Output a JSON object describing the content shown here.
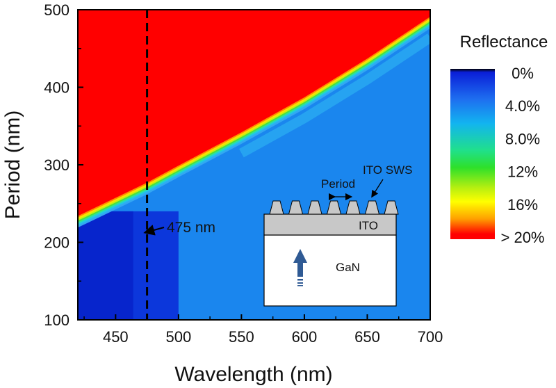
{
  "chart_data": {
    "type": "heatmap",
    "title": "",
    "xlabel": "Wavelength (nm)",
    "ylabel": "Period (nm)",
    "xlim": [
      420,
      700
    ],
    "ylim": [
      100,
      500
    ],
    "x_ticks": [
      450,
      500,
      550,
      600,
      650,
      700
    ],
    "y_ticks": [
      100,
      200,
      300,
      400,
      500
    ],
    "x_tick_labels": [
      "450",
      "500",
      "550",
      "600",
      "650",
      "700"
    ],
    "y_tick_labels": [
      "100",
      "200",
      "300",
      "400",
      "500"
    ],
    "colorbar": {
      "title": "Reflectance",
      "labels": [
        "0%",
        "4.0%",
        "8.0%",
        "12%",
        "16%",
        "> 20%"
      ],
      "values": [
        0,
        4,
        8,
        12,
        16,
        20
      ],
      "unit": "%",
      "colors": [
        "#000000",
        "#0a1fd8",
        "#1e6ff0",
        "#12b4f0",
        "#20e08a",
        "#2ee02a",
        "#b8ef10",
        "#ffff00",
        "#ffa000",
        "#ff0000"
      ]
    },
    "diffraction_boundary": {
      "x": [
        420,
        475,
        500,
        550,
        600,
        650,
        700
      ],
      "y": [
        225,
        268,
        290,
        333,
        378,
        428,
        482
      ]
    },
    "regions": {
      "above_boundary_reflectance": "> 20%",
      "deep_minimum_region": {
        "x": [
          420,
          500
        ],
        "y": [
          100,
          240
        ],
        "reflectance_pct": 1
      }
    },
    "annotations": [
      {
        "text": "475 nm",
        "x": 475,
        "type": "vertical-dashed-line"
      }
    ],
    "inset": {
      "labels": {
        "sws": "ITO SWS",
        "period": "Period",
        "ito": "ITO",
        "gan": "GaN"
      },
      "colors": {
        "ito": "#c8c8c8",
        "gan": "#ffffff",
        "arrow": "#2f5a94"
      }
    }
  }
}
